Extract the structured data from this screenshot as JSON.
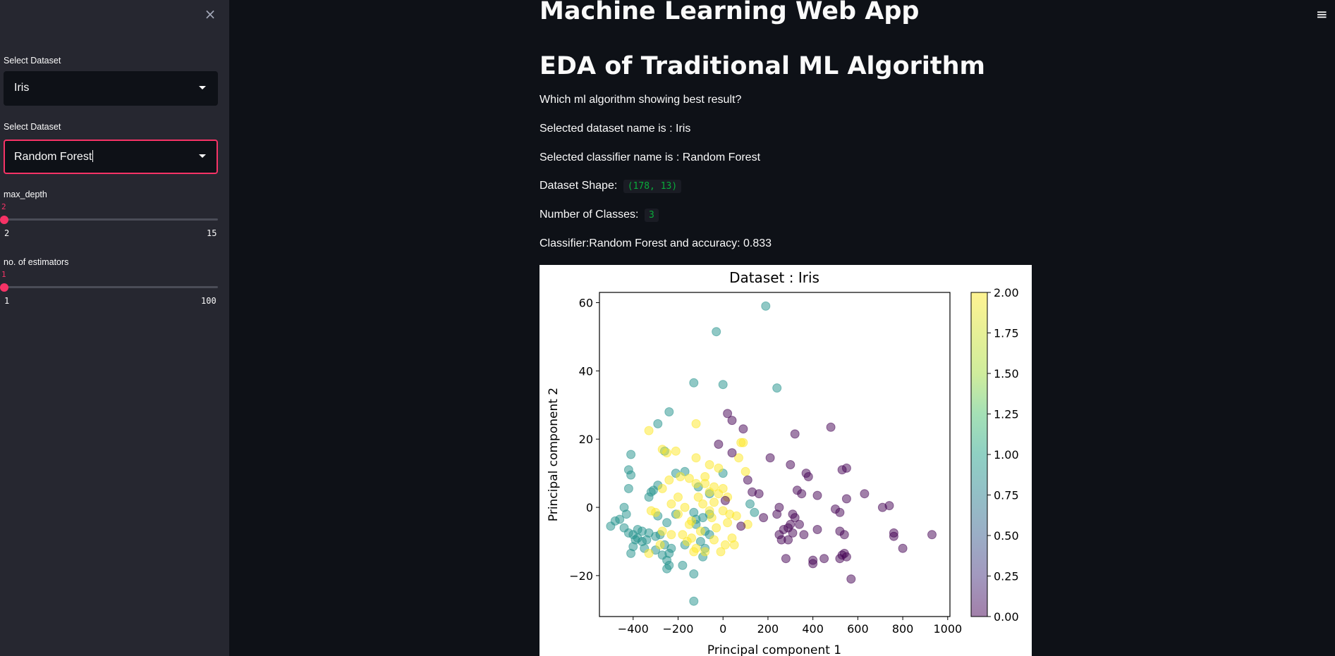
{
  "sidebar": {
    "close_label": "×",
    "dataset_label": "Select Dataset",
    "dataset_value": "Iris",
    "classifier_label": "Select Dataset",
    "classifier_value": "Random Forest",
    "max_depth": {
      "label": "max_depth",
      "value": "2",
      "min": "2",
      "max": "15",
      "fraction": 0
    },
    "estimators": {
      "label": "no. of estimators",
      "value": "1",
      "min": "1",
      "max": "100",
      "fraction": 0
    }
  },
  "header": {
    "menu_label": "≡"
  },
  "main": {
    "title": "Machine Learning Web App",
    "subtitle": "EDA of Traditional ML Algorithm",
    "question": "Which ml algorithm showing best result?",
    "dataset_name_text": "Selected dataset name is : Iris",
    "classifier_name_text": "Selected classifier name is : Random Forest",
    "shape_label": "Dataset Shape:",
    "shape_value": "(178, 13)",
    "classes_label": "Number of Classes:",
    "classes_value": "3",
    "accuracy_text": "Classifier:Random Forest and accuracy: 0.833"
  },
  "chart_data": {
    "type": "scatter",
    "title": "Dataset : Iris",
    "xlabel": "Principal component 1",
    "ylabel": "Principal component 2",
    "xlim": [
      -550,
      1010
    ],
    "ylim": [
      -32,
      63
    ],
    "xticks": [
      -400,
      -200,
      0,
      200,
      400,
      600,
      800,
      1000
    ],
    "yticks": [
      -20,
      0,
      20,
      40,
      60
    ],
    "colorbar": {
      "range": [
        0,
        2
      ],
      "ticks": [
        "0.00",
        "0.25",
        "0.50",
        "0.75",
        "1.00",
        "1.25",
        "1.50",
        "1.75",
        "2.00"
      ],
      "colormap": "viridis"
    },
    "marker_alpha": 0.5,
    "class_colors": {
      "0": "#440154",
      "1": "#21918c",
      "2": "#fde725"
    },
    "points": [
      [
        190,
        59,
        1
      ],
      [
        -30,
        51.5,
        1
      ],
      [
        -130,
        36.5,
        1
      ],
      [
        0,
        36,
        1
      ],
      [
        240,
        35,
        1
      ],
      [
        -290,
        24.5,
        1
      ],
      [
        -260,
        16.5,
        1
      ],
      [
        -410,
        15.5,
        1
      ],
      [
        -420,
        11,
        1
      ],
      [
        -410,
        9.5,
        1
      ],
      [
        0,
        10,
        1
      ],
      [
        -170,
        10.5,
        1
      ],
      [
        -290,
        6.5,
        1
      ],
      [
        -310,
        5,
        1
      ],
      [
        -320,
        4.5,
        1
      ],
      [
        -330,
        3,
        1
      ],
      [
        -420,
        5.5,
        1
      ],
      [
        -110,
        6,
        1
      ],
      [
        -60,
        4,
        1
      ],
      [
        120,
        1,
        1
      ],
      [
        -440,
        0,
        1
      ],
      [
        -460,
        -3.5,
        1
      ],
      [
        -480,
        -4,
        1
      ],
      [
        -430,
        -2,
        1
      ],
      [
        -500,
        -5.5,
        1
      ],
      [
        -290,
        -2.5,
        1
      ],
      [
        -210,
        -2,
        1
      ],
      [
        -130,
        -1.5,
        1
      ],
      [
        -60,
        -2,
        1
      ],
      [
        -90,
        -3,
        1
      ],
      [
        -250,
        -4.5,
        1
      ],
      [
        -120,
        -3.5,
        1
      ],
      [
        140,
        -1.5,
        1
      ],
      [
        -420,
        -7.5,
        1
      ],
      [
        -400,
        -8,
        1
      ],
      [
        -360,
        -7,
        1
      ],
      [
        -330,
        -7.5,
        1
      ],
      [
        -380,
        -9,
        1
      ],
      [
        -340,
        -9.5,
        1
      ],
      [
        -300,
        -8.5,
        1
      ],
      [
        -280,
        -8,
        1
      ],
      [
        -400,
        -11.5,
        1
      ],
      [
        -410,
        -13.5,
        1
      ],
      [
        -350,
        -12,
        1
      ],
      [
        -260,
        -11,
        1
      ],
      [
        -230,
        -12,
        1
      ],
      [
        -170,
        -11,
        1
      ],
      [
        -100,
        -10,
        1
      ],
      [
        -80,
        -12,
        1
      ],
      [
        -90,
        -14.5,
        1
      ],
      [
        -270,
        -14,
        1
      ],
      [
        -250,
        -15.5,
        1
      ],
      [
        -240,
        -17,
        1
      ],
      [
        -180,
        -17,
        1
      ],
      [
        -250,
        -18,
        1
      ],
      [
        -130,
        -19.5,
        1
      ],
      [
        -130,
        -27.5,
        1
      ],
      [
        -80,
        -7,
        1
      ],
      [
        -120,
        -5,
        1
      ],
      [
        -60,
        -8,
        1
      ],
      [
        -240,
        28,
        1
      ],
      [
        -210,
        10,
        1
      ],
      [
        -380,
        -6.5,
        1
      ],
      [
        -360,
        -10,
        1
      ],
      [
        -300,
        -12.5,
        1
      ],
      [
        -240,
        -13.5,
        1
      ],
      [
        -390,
        -9.5,
        1
      ],
      [
        -440,
        -6,
        1
      ],
      [
        -120,
        24.5,
        2
      ],
      [
        -330,
        22.5,
        2
      ],
      [
        -270,
        17,
        2
      ],
      [
        -250,
        16,
        2
      ],
      [
        -210,
        16.5,
        2
      ],
      [
        -120,
        14.5,
        2
      ],
      [
        -60,
        12.5,
        2
      ],
      [
        80,
        19,
        2
      ],
      [
        90,
        19,
        2
      ],
      [
        70,
        14.5,
        2
      ],
      [
        -20,
        11.5,
        2
      ],
      [
        100,
        10.5,
        2
      ],
      [
        -240,
        8,
        2
      ],
      [
        -190,
        9,
        2
      ],
      [
        -150,
        8.5,
        2
      ],
      [
        -120,
        7,
        2
      ],
      [
        -80,
        9,
        2
      ],
      [
        -80,
        7,
        2
      ],
      [
        -40,
        6,
        2
      ],
      [
        -20,
        4,
        2
      ],
      [
        -270,
        5.5,
        2
      ],
      [
        -200,
        3,
        2
      ],
      [
        -110,
        3,
        2
      ],
      [
        -60,
        4.5,
        2
      ],
      [
        0,
        5.5,
        2
      ],
      [
        20,
        3,
        2
      ],
      [
        -320,
        -1,
        2
      ],
      [
        -300,
        -1.5,
        2
      ],
      [
        -230,
        1,
        2
      ],
      [
        -170,
        0,
        2
      ],
      [
        -90,
        1,
        2
      ],
      [
        -60,
        -1,
        2
      ],
      [
        0,
        -1,
        2
      ],
      [
        30,
        -2,
        2
      ],
      [
        -200,
        -2,
        2
      ],
      [
        -140,
        -4,
        2
      ],
      [
        -100,
        -7,
        2
      ],
      [
        -30,
        -6,
        2
      ],
      [
        20,
        -4.5,
        2
      ],
      [
        110,
        -5,
        2
      ],
      [
        -180,
        -8,
        2
      ],
      [
        -140,
        -9,
        2
      ],
      [
        -40,
        -9.5,
        2
      ],
      [
        10,
        -11,
        2
      ],
      [
        50,
        -11,
        2
      ],
      [
        -160,
        -10,
        2
      ],
      [
        -120,
        -12,
        2
      ],
      [
        -80,
        -13,
        2
      ],
      [
        -10,
        -13,
        2
      ],
      [
        -280,
        -11,
        2
      ],
      [
        -230,
        -8,
        2
      ],
      [
        -270,
        -7,
        2
      ],
      [
        -330,
        -13.5,
        2
      ],
      [
        -130,
        -13,
        2
      ],
      [
        40,
        -9,
        2
      ],
      [
        -150,
        -5,
        2
      ],
      [
        -50,
        -3,
        2
      ],
      [
        60,
        -2.5,
        2
      ],
      [
        -40,
        1.5,
        2
      ],
      [
        20,
        27.5,
        0
      ],
      [
        40,
        25.5,
        0
      ],
      [
        -20,
        18.5,
        0
      ],
      [
        90,
        23,
        0
      ],
      [
        320,
        21.5,
        0
      ],
      [
        480,
        23.5,
        0
      ],
      [
        40,
        16,
        0
      ],
      [
        210,
        14.5,
        0
      ],
      [
        110,
        8,
        0
      ],
      [
        300,
        12.5,
        0
      ],
      [
        370,
        10,
        0
      ],
      [
        380,
        9,
        0
      ],
      [
        530,
        11,
        0
      ],
      [
        550,
        11.5,
        0
      ],
      [
        10,
        2,
        0
      ],
      [
        130,
        4.5,
        0
      ],
      [
        160,
        4,
        0
      ],
      [
        330,
        5,
        0
      ],
      [
        350,
        4,
        0
      ],
      [
        420,
        3.5,
        0
      ],
      [
        550,
        2.5,
        0
      ],
      [
        630,
        4,
        0
      ],
      [
        180,
        -3,
        0
      ],
      [
        240,
        -2,
        0
      ],
      [
        310,
        -2,
        0
      ],
      [
        320,
        -3,
        0
      ],
      [
        250,
        0,
        0
      ],
      [
        500,
        -0.5,
        0
      ],
      [
        520,
        -1.5,
        0
      ],
      [
        710,
        0,
        0
      ],
      [
        740,
        0.5,
        0
      ],
      [
        300,
        -5,
        0
      ],
      [
        290,
        -6,
        0
      ],
      [
        340,
        -5,
        0
      ],
      [
        270,
        -6.5,
        0
      ],
      [
        310,
        -7.5,
        0
      ],
      [
        250,
        -8,
        0
      ],
      [
        260,
        -9.5,
        0
      ],
      [
        290,
        -9.5,
        0
      ],
      [
        360,
        -8,
        0
      ],
      [
        420,
        -6.5,
        0
      ],
      [
        520,
        -7,
        0
      ],
      [
        540,
        -8,
        0
      ],
      [
        760,
        -7.5,
        0
      ],
      [
        760,
        -8.5,
        0
      ],
      [
        930,
        -8,
        0
      ],
      [
        800,
        -12,
        0
      ],
      [
        400,
        -15.5,
        0
      ],
      [
        400,
        -16.5,
        0
      ],
      [
        450,
        -15,
        0
      ],
      [
        530,
        -14,
        0
      ],
      [
        540,
        -13.5,
        0
      ],
      [
        520,
        -15,
        0
      ],
      [
        280,
        -15,
        0
      ],
      [
        570,
        -21,
        0
      ],
      [
        80,
        -5.5,
        0
      ],
      [
        550,
        -14.5,
        0
      ]
    ]
  }
}
